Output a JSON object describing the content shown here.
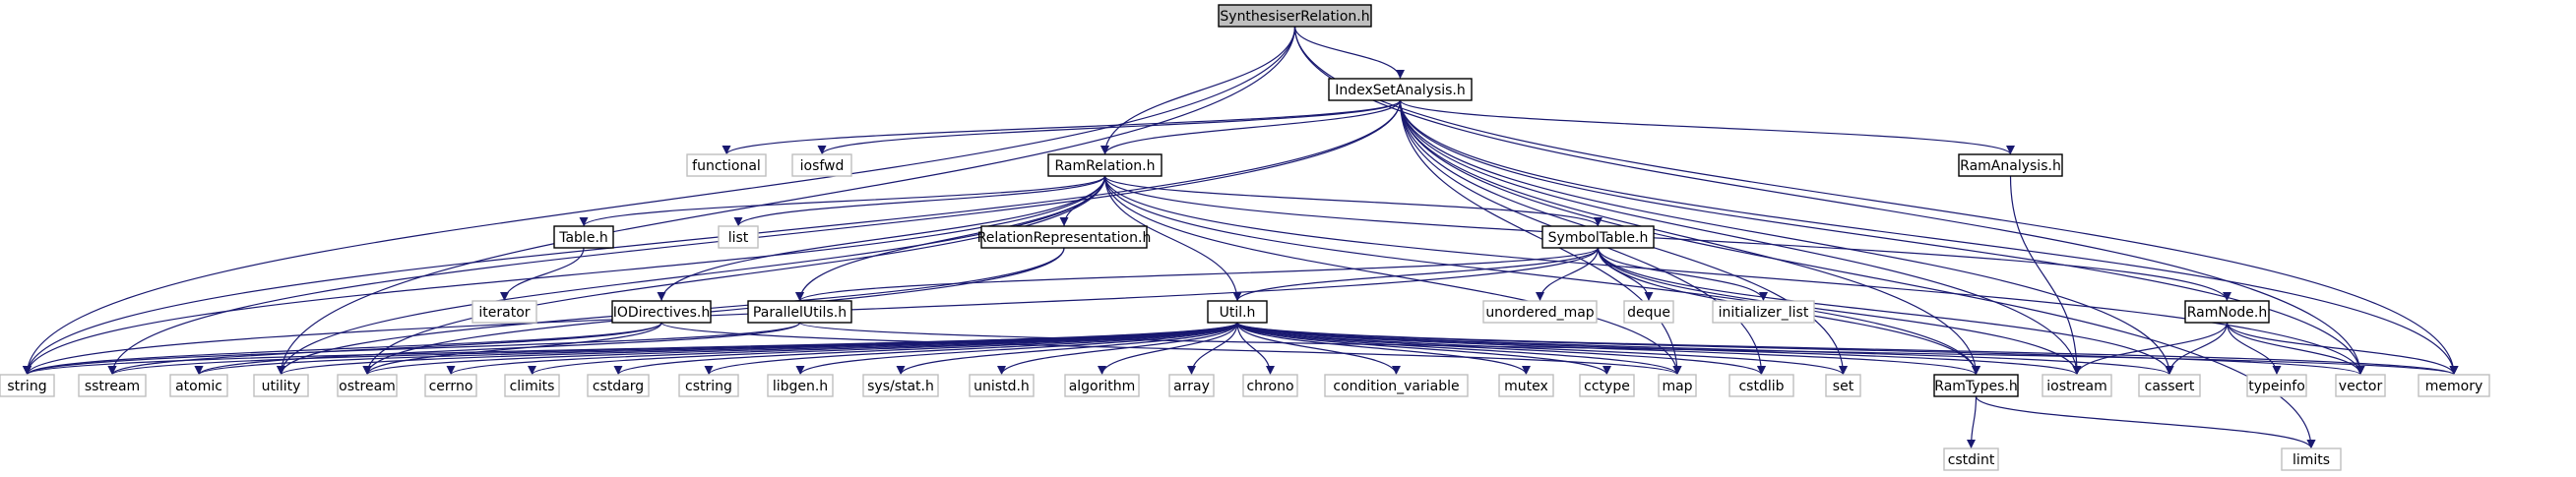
{
  "diagram": {
    "edge_color": "#191970",
    "nodes": [
      {
        "id": "synth",
        "label": "SynthesiserRelation.h",
        "kind": "root"
      },
      {
        "id": "isa",
        "label": "IndexSetAnalysis.h",
        "kind": "linked"
      },
      {
        "id": "ramrel",
        "label": "RamRelation.h",
        "kind": "linked"
      },
      {
        "id": "ramanalysis",
        "label": "RamAnalysis.h",
        "kind": "linked"
      },
      {
        "id": "functional",
        "label": "functional",
        "kind": "ext"
      },
      {
        "id": "iosfwd",
        "label": "iosfwd",
        "kind": "ext"
      },
      {
        "id": "table",
        "label": "Table.h",
        "kind": "linked"
      },
      {
        "id": "list",
        "label": "list",
        "kind": "ext"
      },
      {
        "id": "relrep",
        "label": "RelationRepresentation.h",
        "kind": "linked"
      },
      {
        "id": "symtab",
        "label": "SymbolTable.h",
        "kind": "linked"
      },
      {
        "id": "iterator",
        "label": "iterator",
        "kind": "ext"
      },
      {
        "id": "iodir",
        "label": "IODirectives.h",
        "kind": "linked"
      },
      {
        "id": "parutils",
        "label": "ParallelUtils.h",
        "kind": "linked"
      },
      {
        "id": "util",
        "label": "Util.h",
        "kind": "linked"
      },
      {
        "id": "unordered_map",
        "label": "unordered_map",
        "kind": "ext"
      },
      {
        "id": "deque",
        "label": "deque",
        "kind": "ext"
      },
      {
        "id": "initializer_list",
        "label": "initializer_list",
        "kind": "ext"
      },
      {
        "id": "ramnode",
        "label": "RamNode.h",
        "kind": "linked"
      },
      {
        "id": "string",
        "label": "string",
        "kind": "ext"
      },
      {
        "id": "sstream",
        "label": "sstream",
        "kind": "ext"
      },
      {
        "id": "atomic",
        "label": "atomic",
        "kind": "ext"
      },
      {
        "id": "utility",
        "label": "utility",
        "kind": "ext"
      },
      {
        "id": "ostream",
        "label": "ostream",
        "kind": "ext"
      },
      {
        "id": "cerrno",
        "label": "cerrno",
        "kind": "ext"
      },
      {
        "id": "climits",
        "label": "climits",
        "kind": "ext"
      },
      {
        "id": "cstdarg",
        "label": "cstdarg",
        "kind": "ext"
      },
      {
        "id": "cstring",
        "label": "cstring",
        "kind": "ext"
      },
      {
        "id": "libgen",
        "label": "libgen.h",
        "kind": "ext"
      },
      {
        "id": "sysstat",
        "label": "sys/stat.h",
        "kind": "ext"
      },
      {
        "id": "unistd",
        "label": "unistd.h",
        "kind": "ext"
      },
      {
        "id": "algorithm",
        "label": "algorithm",
        "kind": "ext"
      },
      {
        "id": "array",
        "label": "array",
        "kind": "ext"
      },
      {
        "id": "chrono",
        "label": "chrono",
        "kind": "ext"
      },
      {
        "id": "condvar",
        "label": "condition_variable",
        "kind": "ext"
      },
      {
        "id": "mutex",
        "label": "mutex",
        "kind": "ext"
      },
      {
        "id": "cctype",
        "label": "cctype",
        "kind": "ext"
      },
      {
        "id": "map",
        "label": "map",
        "kind": "ext"
      },
      {
        "id": "cstdlib",
        "label": "cstdlib",
        "kind": "ext"
      },
      {
        "id": "set",
        "label": "set",
        "kind": "ext"
      },
      {
        "id": "ramtypes",
        "label": "RamTypes.h",
        "kind": "linked"
      },
      {
        "id": "iostream",
        "label": "iostream",
        "kind": "ext"
      },
      {
        "id": "cassert",
        "label": "cassert",
        "kind": "ext"
      },
      {
        "id": "typeinfo",
        "label": "typeinfo",
        "kind": "ext"
      },
      {
        "id": "vector",
        "label": "vector",
        "kind": "ext"
      },
      {
        "id": "memory",
        "label": "memory",
        "kind": "ext"
      },
      {
        "id": "cstdint",
        "label": "cstdint",
        "kind": "ext"
      },
      {
        "id": "limits",
        "label": "limits",
        "kind": "ext"
      }
    ],
    "edges": [
      [
        "synth",
        "isa"
      ],
      [
        "synth",
        "ramrel"
      ],
      [
        "synth",
        "string"
      ],
      [
        "synth",
        "vector"
      ],
      [
        "synth",
        "memory"
      ],
      [
        "synth",
        "utility"
      ],
      [
        "isa",
        "ramrel"
      ],
      [
        "isa",
        "ramanalysis"
      ],
      [
        "isa",
        "functional"
      ],
      [
        "isa",
        "iosfwd"
      ],
      [
        "isa",
        "string"
      ],
      [
        "isa",
        "sstream"
      ],
      [
        "isa",
        "map"
      ],
      [
        "isa",
        "set"
      ],
      [
        "isa",
        "cassert"
      ],
      [
        "isa",
        "vector"
      ],
      [
        "isa",
        "memory"
      ],
      [
        "isa",
        "limits"
      ],
      [
        "isa",
        "ramtypes"
      ],
      [
        "isa",
        "iostream"
      ],
      [
        "isa",
        "cstdlib"
      ],
      [
        "ramrel",
        "table"
      ],
      [
        "ramrel",
        "list"
      ],
      [
        "ramrel",
        "relrep"
      ],
      [
        "ramrel",
        "symtab"
      ],
      [
        "ramrel",
        "iodir"
      ],
      [
        "ramrel",
        "parutils"
      ],
      [
        "ramrel",
        "util"
      ],
      [
        "ramrel",
        "ramnode"
      ],
      [
        "ramrel",
        "ramtypes"
      ],
      [
        "ramrel",
        "string"
      ],
      [
        "ramrel",
        "utility"
      ],
      [
        "ramrel",
        "vector"
      ],
      [
        "ramrel",
        "map"
      ],
      [
        "ramrel",
        "ostream"
      ],
      [
        "ramanalysis",
        "iostream"
      ],
      [
        "table",
        "iterator"
      ],
      [
        "relrep",
        "ostream"
      ],
      [
        "relrep",
        "utility"
      ],
      [
        "symtab",
        "util"
      ],
      [
        "symtab",
        "parutils"
      ],
      [
        "symtab",
        "unordered_map"
      ],
      [
        "symtab",
        "deque"
      ],
      [
        "symtab",
        "initializer_list"
      ],
      [
        "symtab",
        "iostream"
      ],
      [
        "symtab",
        "string"
      ],
      [
        "symtab",
        "cassert"
      ],
      [
        "symtab",
        "ramtypes"
      ],
      [
        "iodir",
        "string"
      ],
      [
        "iodir",
        "map"
      ],
      [
        "iodir",
        "sstream"
      ],
      [
        "iodir",
        "ostream"
      ],
      [
        "parutils",
        "atomic"
      ],
      [
        "parutils",
        "memory"
      ],
      [
        "parutils",
        "string"
      ],
      [
        "util",
        "string"
      ],
      [
        "util",
        "sstream"
      ],
      [
        "util",
        "atomic"
      ],
      [
        "util",
        "utility"
      ],
      [
        "util",
        "ostream"
      ],
      [
        "util",
        "cerrno"
      ],
      [
        "util",
        "climits"
      ],
      [
        "util",
        "cstdarg"
      ],
      [
        "util",
        "cstring"
      ],
      [
        "util",
        "libgen"
      ],
      [
        "util",
        "sysstat"
      ],
      [
        "util",
        "unistd"
      ],
      [
        "util",
        "algorithm"
      ],
      [
        "util",
        "array"
      ],
      [
        "util",
        "chrono"
      ],
      [
        "util",
        "condvar"
      ],
      [
        "util",
        "mutex"
      ],
      [
        "util",
        "cctype"
      ],
      [
        "util",
        "map"
      ],
      [
        "util",
        "cstdlib"
      ],
      [
        "util",
        "set"
      ],
      [
        "util",
        "ramtypes"
      ],
      [
        "util",
        "iostream"
      ],
      [
        "util",
        "cassert"
      ],
      [
        "util",
        "vector"
      ],
      [
        "util",
        "memory"
      ],
      [
        "ramnode",
        "iostream"
      ],
      [
        "ramnode",
        "cassert"
      ],
      [
        "ramnode",
        "typeinfo"
      ],
      [
        "ramnode",
        "vector"
      ],
      [
        "ramnode",
        "memory"
      ],
      [
        "ramtypes",
        "cstdint"
      ],
      [
        "ramtypes",
        "limits"
      ]
    ]
  }
}
